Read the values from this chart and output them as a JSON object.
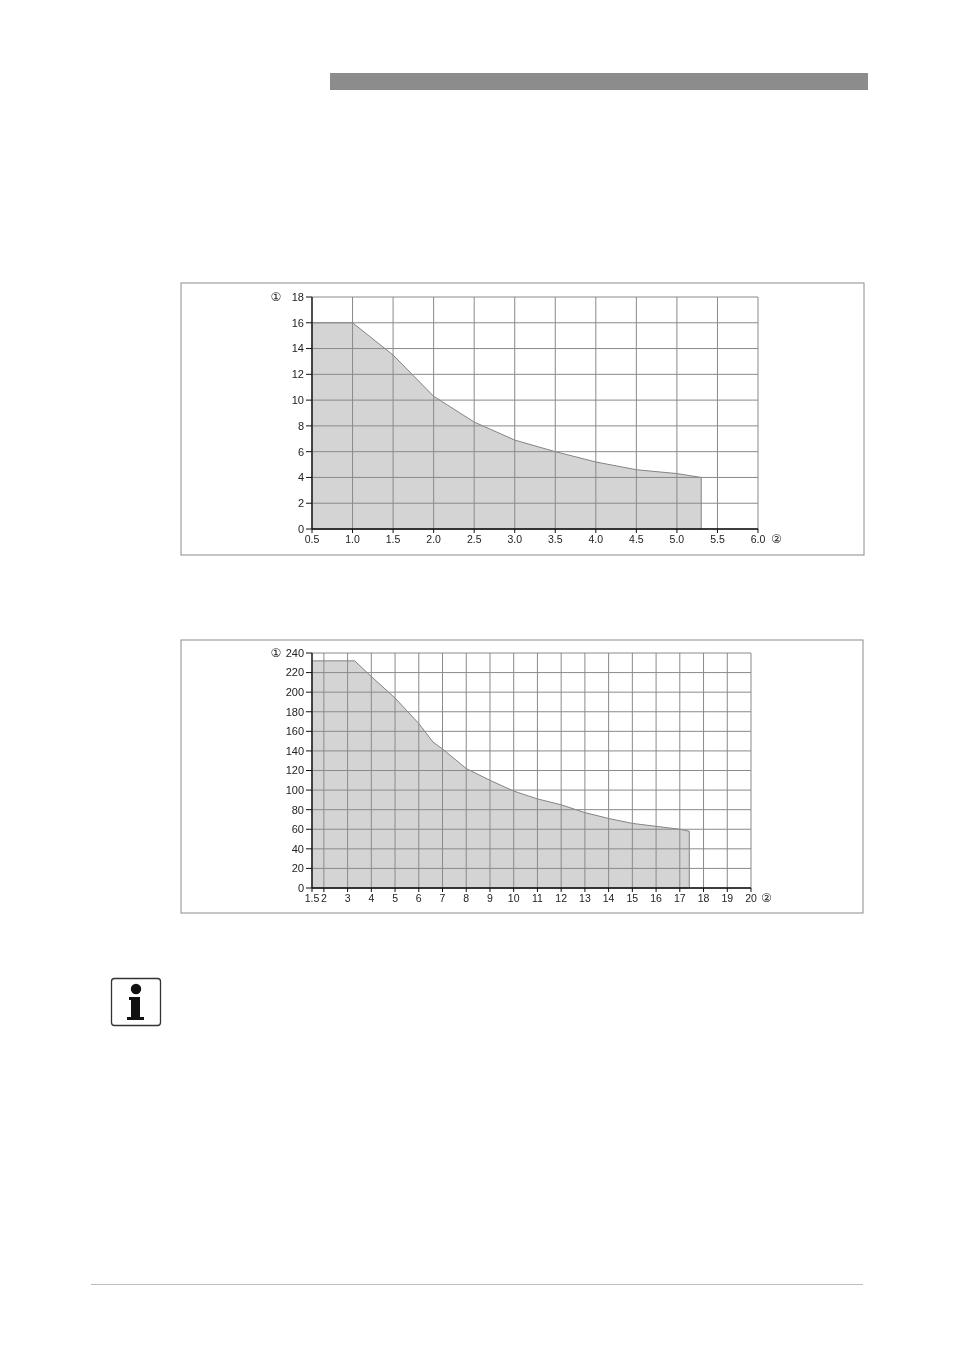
{
  "chart_data": [
    {
      "type": "area",
      "xlabel": "②",
      "ylabel": "①",
      "x": [
        0.5,
        1.0,
        1.5,
        2.0,
        2.5,
        3.0,
        3.5,
        4.0,
        4.5,
        5.0,
        5.3
      ],
      "values": [
        16,
        16,
        13.5,
        10.3,
        8.3,
        6.9,
        6.0,
        5.2,
        4.6,
        4.3,
        4.0
      ],
      "color": "#d4d4d4",
      "xlim": [
        0.5,
        6.0
      ],
      "xticks": [
        0.5,
        {
          "value": 1,
          "label": "1.0"
        },
        1.5,
        {
          "value": 2,
          "label": "2.0"
        },
        2.5,
        {
          "value": 3,
          "label": "3.0"
        },
        3.5,
        {
          "value": 4,
          "label": "4.0"
        },
        4.5,
        {
          "value": 5,
          "label": "5.0"
        },
        5.5,
        {
          "value": 6,
          "label": "6.0"
        }
      ],
      "ylim": [
        0,
        18
      ],
      "yticks": [
        0,
        2,
        4,
        6,
        8,
        10,
        12,
        14,
        16,
        18
      ],
      "grid": true
    },
    {
      "type": "area",
      "xlabel": "②",
      "ylabel": "①",
      "x": [
        1.5,
        3.3,
        4,
        5,
        6,
        6.6,
        7,
        8,
        9,
        10,
        11,
        12,
        13,
        14,
        15,
        16,
        17,
        17.4
      ],
      "values": [
        232,
        232,
        216,
        194,
        168,
        149,
        142,
        122,
        110,
        99,
        91,
        85,
        77,
        71,
        66,
        63,
        60,
        58
      ],
      "color": "#d4d4d4",
      "xlim": [
        1.5,
        20
      ],
      "xticks": [
        1.5,
        2,
        3,
        4,
        5,
        6,
        7,
        8,
        9,
        10,
        11,
        12,
        13,
        14,
        15,
        16,
        17,
        18,
        19,
        20
      ],
      "ylim": [
        0,
        240
      ],
      "yticks": [
        0,
        20,
        40,
        60,
        80,
        100,
        120,
        140,
        160,
        180,
        200,
        220,
        240
      ],
      "grid": true
    }
  ]
}
